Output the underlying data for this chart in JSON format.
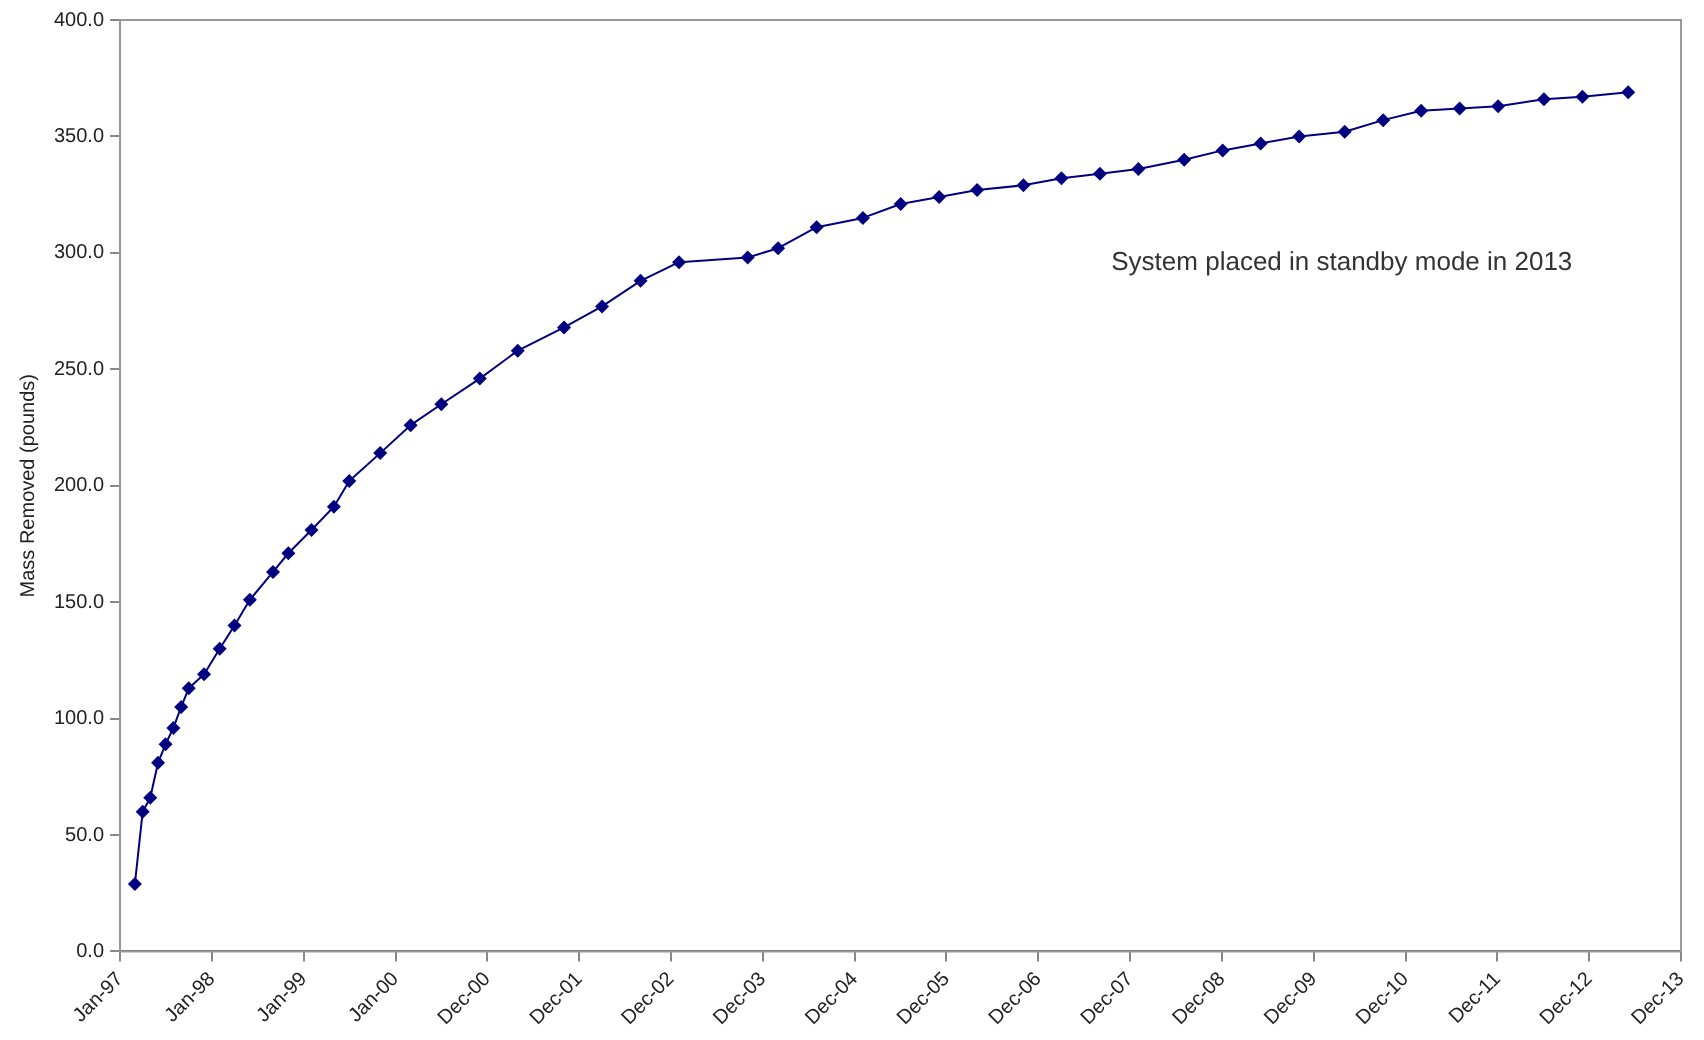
{
  "chart_data": {
    "type": "line",
    "ylabel": "Mass Removed (pounds)",
    "annotations": [
      "System placed in standby mode in 2013"
    ],
    "marker": "diamond",
    "grid": false,
    "legend": false,
    "x": [
      "1997-03",
      "1997-04",
      "1997-05",
      "1997-06",
      "1997-07",
      "1997-08",
      "1997-09",
      "1997-10",
      "1997-12",
      "1998-02",
      "1998-04",
      "1998-06",
      "1998-09",
      "1998-11",
      "1999-02",
      "1999-05",
      "1999-07",
      "1999-11",
      "2000-03",
      "2000-07",
      "2000-12",
      "2001-05",
      "2001-11",
      "2002-04",
      "2002-09",
      "2003-02",
      "2003-11",
      "2004-03",
      "2004-08",
      "2005-02",
      "2005-07",
      "2005-12",
      "2006-05",
      "2006-11",
      "2007-04",
      "2007-09",
      "2008-02",
      "2008-08",
      "2009-01",
      "2009-06",
      "2009-11",
      "2010-05",
      "2010-10",
      "2011-03",
      "2011-08",
      "2012-01",
      "2012-07",
      "2012-12",
      "2013-06"
    ],
    "series": [
      {
        "color": "#000080",
        "values": [
          29,
          60,
          66,
          81,
          89,
          96,
          105,
          113,
          119,
          130,
          140,
          151,
          163,
          171,
          181,
          191,
          202,
          214,
          226,
          235,
          246,
          258,
          268,
          277,
          288,
          296,
          298,
          302,
          311,
          315,
          321,
          324,
          327,
          329,
          332,
          334,
          336,
          340,
          344,
          347,
          350,
          352,
          357,
          361,
          362,
          363,
          366,
          367,
          369
        ]
      }
    ],
    "xlim": [
      "1997-01-01",
      "2013-12-28"
    ],
    "xticks": [
      {
        "value": "1997-01-01",
        "label": "Jan-97"
      },
      {
        "value": "1998-01-01",
        "label": "Jan-98"
      },
      {
        "value": "1999-01-01",
        "label": "Jan-99"
      },
      {
        "value": "2000-01-01",
        "label": "Jan-00"
      },
      {
        "value": "2000-12-31",
        "label": "Dec-00"
      },
      {
        "value": "2001-12-31",
        "label": "Dec-01"
      },
      {
        "value": "2002-12-31",
        "label": "Dec-02"
      },
      {
        "value": "2003-12-31",
        "label": "Dec-03"
      },
      {
        "value": "2004-12-30",
        "label": "Dec-04"
      },
      {
        "value": "2005-12-30",
        "label": "Dec-05"
      },
      {
        "value": "2006-12-30",
        "label": "Dec-06"
      },
      {
        "value": "2007-12-30",
        "label": "Dec-07"
      },
      {
        "value": "2008-12-29",
        "label": "Dec-08"
      },
      {
        "value": "2009-12-29",
        "label": "Dec-09"
      },
      {
        "value": "2010-12-29",
        "label": "Dec-10"
      },
      {
        "value": "2011-12-29",
        "label": "Dec-11"
      },
      {
        "value": "2012-12-28",
        "label": "Dec-12"
      },
      {
        "value": "2013-12-28",
        "label": "Dec-13"
      }
    ],
    "ylim": [
      0,
      400
    ],
    "yticks": [
      {
        "value": 0,
        "label": "0.0"
      },
      {
        "value": 50,
        "label": "50.0"
      },
      {
        "value": 100,
        "label": "100.0"
      },
      {
        "value": 150,
        "label": "150.0"
      },
      {
        "value": 200,
        "label": "200.0"
      },
      {
        "value": 250,
        "label": "250.0"
      },
      {
        "value": 300,
        "label": "300.0"
      },
      {
        "value": 350,
        "label": "350.0"
      },
      {
        "value": 400,
        "label": "400.0"
      }
    ]
  }
}
